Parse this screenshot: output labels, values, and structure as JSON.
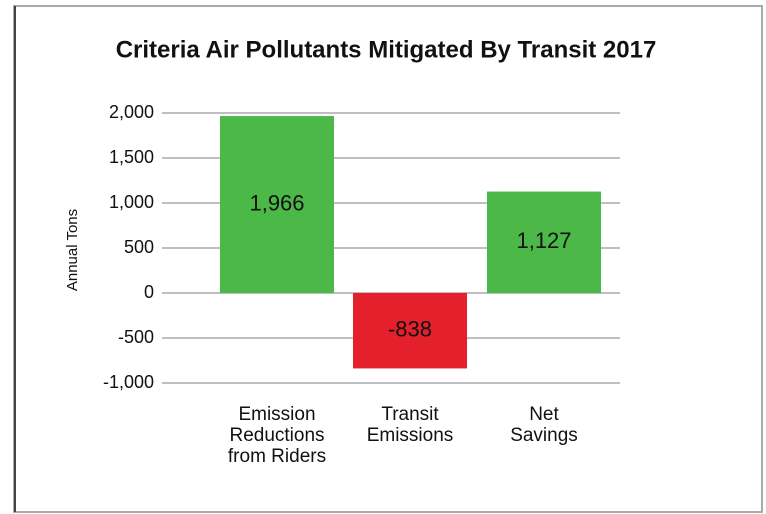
{
  "chart_data": {
    "type": "bar",
    "title": "Criteria Air Pollutants Mitigated By Transit 2017",
    "ylabel": "Annual Tons",
    "categories": [
      "Emission Reductions from Riders",
      "Transit Emissions",
      "Net Savings"
    ],
    "values": [
      1966,
      -838,
      1127
    ],
    "value_labels": [
      "1,966",
      "-838",
      "1,127"
    ],
    "colors": [
      "#4cb848",
      "#e3202b",
      "#4cb848"
    ],
    "ylim": [
      -1000,
      2000
    ],
    "yticks": [
      {
        "value": 2000,
        "label": "2,000"
      },
      {
        "value": 1500,
        "label": "1,500"
      },
      {
        "value": 1000,
        "label": "1,000"
      },
      500,
      0,
      -500,
      {
        "value": -1000,
        "label": "-1,000"
      }
    ],
    "grid": true
  }
}
